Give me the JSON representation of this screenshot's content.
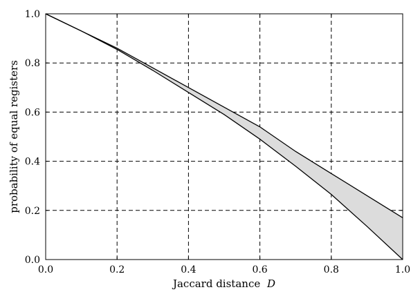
{
  "chart_data": {
    "type": "area",
    "title": "",
    "xlabel": "Jaccard distance",
    "xlabel_symbol": "D",
    "ylabel": "probability of equal registers",
    "xlim": [
      0.0,
      1.0
    ],
    "ylim": [
      0.0,
      1.0
    ],
    "xticks": [
      0.0,
      0.2,
      0.4,
      0.6,
      0.8,
      1.0
    ],
    "xtick_labels": [
      "0.0",
      "0.2",
      "0.4",
      "0.6",
      "0.8",
      "1.0"
    ],
    "yticks": [
      0.0,
      0.2,
      0.4,
      0.6,
      0.8,
      1.0
    ],
    "ytick_labels": [
      "0.0",
      "0.2",
      "0.4",
      "0.6",
      "0.8",
      "1.0"
    ],
    "grid": true,
    "grid_style": "dashed",
    "legend": "none",
    "series": [
      {
        "role": "upper bound",
        "color": "#000000",
        "x": [
          0.0,
          0.1,
          0.2,
          0.3,
          0.4,
          0.5,
          0.6,
          0.7,
          0.8,
          0.9,
          1.0
        ],
        "y": [
          1.0,
          0.93,
          0.86,
          0.78,
          0.7,
          0.62,
          0.54,
          0.44,
          0.35,
          0.26,
          0.17
        ]
      },
      {
        "role": "lower bound",
        "color": "#000000",
        "x": [
          0.0,
          0.1,
          0.2,
          0.3,
          0.4,
          0.5,
          0.6,
          0.7,
          0.8,
          0.9,
          1.0
        ],
        "y": [
          1.0,
          0.93,
          0.855,
          0.77,
          0.68,
          0.59,
          0.49,
          0.38,
          0.265,
          0.135,
          0.0
        ]
      }
    ],
    "fill_between": {
      "color": "#dcdcdc"
    }
  }
}
